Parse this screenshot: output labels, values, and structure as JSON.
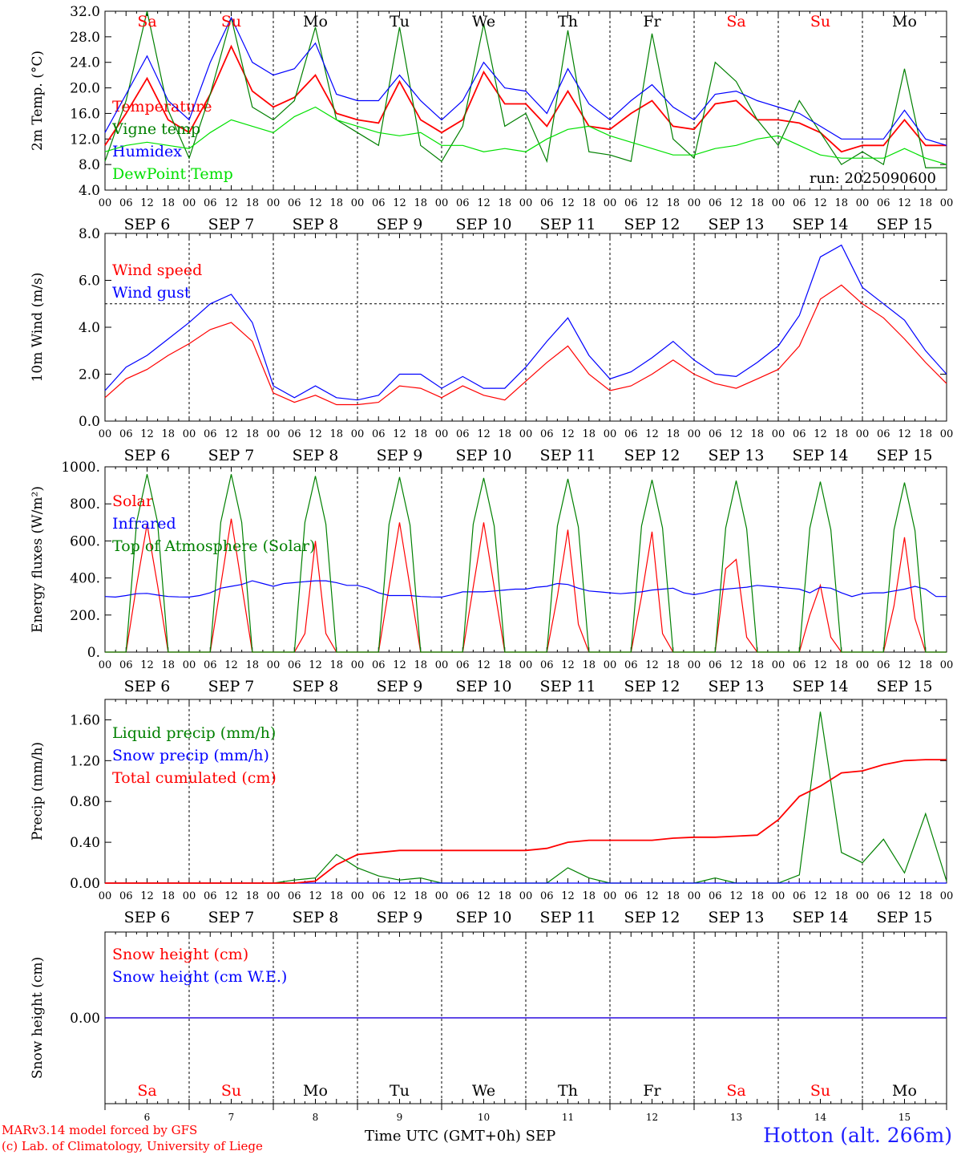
{
  "footer": {
    "model": "MARv3.14 model forced by GFS",
    "lab": "(c) Lab. of Climatology, University of Liege",
    "axis_title": "Time UTC (GMT+0h)",
    "month": "SEP",
    "station": "Hotton (alt. 266m)"
  },
  "run_label": "run: 2025090600",
  "days": [
    {
      "dow": "Sa",
      "num": "6",
      "weekend": true
    },
    {
      "dow": "Su",
      "num": "7",
      "weekend": true
    },
    {
      "dow": "Mo",
      "num": "8",
      "weekend": false
    },
    {
      "dow": "Tu",
      "num": "9",
      "weekend": false
    },
    {
      "dow": "We",
      "num": "10",
      "weekend": false
    },
    {
      "dow": "Th",
      "num": "11",
      "weekend": false
    },
    {
      "dow": "Fr",
      "num": "12",
      "weekend": false
    },
    {
      "dow": "Sa",
      "num": "13",
      "weekend": true
    },
    {
      "dow": "Su",
      "num": "14",
      "weekend": true
    },
    {
      "dow": "Mo",
      "num": "15",
      "weekend": false
    }
  ],
  "colors": {
    "red": "#ff0000",
    "green": "#008000",
    "blue": "#0000ff",
    "lightgreen": "#00e000",
    "weekend": "#ff0000",
    "weekday": "#000000"
  },
  "chart_data": [
    {
      "type": "line",
      "ylabel": "2m Temp. (°C)",
      "ylim": [
        4,
        32
      ],
      "yticks": [
        "4.0",
        "8.0",
        "12.0",
        "16.0",
        "20.0",
        "24.0",
        "28.0",
        "32.0"
      ],
      "x_unit": "hours since 2025-09-06 00 UTC",
      "x": [
        0,
        6,
        12,
        18,
        24,
        30,
        36,
        42,
        48,
        54,
        60,
        66,
        72,
        78,
        84,
        90,
        96,
        102,
        108,
        114,
        120,
        126,
        132,
        138,
        144,
        150,
        156,
        162,
        168,
        174,
        180,
        186,
        192,
        198,
        204,
        210,
        216,
        222,
        228,
        234,
        240
      ],
      "series": [
        {
          "name": "Temperature",
          "color": "#ff0000",
          "values": [
            11.0,
            16.0,
            21.5,
            15.0,
            13.0,
            19.0,
            26.5,
            19.5,
            17.0,
            18.5,
            22.0,
            16.0,
            15.0,
            14.5,
            21.0,
            15.0,
            13.0,
            15.0,
            22.5,
            17.5,
            17.5,
            14.0,
            19.5,
            14.0,
            13.5,
            16.0,
            18.0,
            14.0,
            13.5,
            17.5,
            18.0,
            15.0,
            15.0,
            14.5,
            13.0,
            10.0,
            11.0,
            11.0,
            15.0,
            11.0,
            11.0
          ]
        },
        {
          "name": "Vigne temp",
          "color": "#008000",
          "values": [
            8.5,
            18.0,
            32.0,
            16.5,
            9.0,
            19.0,
            31.0,
            17.0,
            15.0,
            18.0,
            29.5,
            15.0,
            13.0,
            11.0,
            29.5,
            11.0,
            8.5,
            14.0,
            30.0,
            14.0,
            16.0,
            8.5,
            29.0,
            10.0,
            9.5,
            8.5,
            28.5,
            12.0,
            9.0,
            24.0,
            21.0,
            15.0,
            11.0,
            18.0,
            13.0,
            8.0,
            10.0,
            8.0,
            23.0,
            7.5,
            7.5
          ]
        },
        {
          "name": "Humidex",
          "color": "#0000ff",
          "values": [
            13.0,
            19.0,
            25.0,
            18.0,
            15.0,
            24.0,
            31.0,
            24.0,
            22.0,
            23.0,
            27.0,
            19.0,
            18.0,
            18.0,
            22.0,
            18.0,
            15.0,
            18.0,
            24.0,
            20.0,
            19.5,
            16.0,
            23.0,
            17.5,
            15.0,
            18.0,
            20.5,
            17.0,
            15.0,
            19.0,
            19.5,
            18.0,
            17.0,
            16.0,
            14.0,
            12.0,
            12.0,
            12.0,
            16.5,
            12.0,
            11.0
          ]
        },
        {
          "name": "DewPoint Temp",
          "color": "#00e000",
          "values": [
            10.0,
            11.0,
            11.5,
            11.0,
            10.5,
            13.0,
            15.0,
            14.0,
            13.0,
            15.5,
            17.0,
            15.0,
            14.0,
            13.0,
            12.5,
            13.0,
            11.0,
            11.0,
            10.0,
            10.5,
            10.0,
            12.0,
            13.5,
            14.0,
            12.5,
            11.5,
            10.5,
            9.5,
            9.5,
            10.5,
            11.0,
            12.0,
            12.5,
            11.0,
            9.5,
            9.0,
            9.0,
            9.0,
            10.5,
            9.0,
            8.0
          ]
        }
      ]
    },
    {
      "type": "line",
      "ylabel": "10m Wind (m/s)",
      "ylim": [
        0,
        8
      ],
      "yticks": [
        "0.0",
        "2.0",
        "4.0",
        "6.0",
        "8.0"
      ],
      "reference_line": 5,
      "x_unit": "hours since 2025-09-06 00 UTC",
      "x": [
        0,
        6,
        12,
        18,
        24,
        30,
        36,
        42,
        48,
        54,
        60,
        66,
        72,
        78,
        84,
        90,
        96,
        102,
        108,
        114,
        120,
        126,
        132,
        138,
        144,
        150,
        156,
        162,
        168,
        174,
        180,
        186,
        192,
        198,
        204,
        210,
        216,
        222,
        228,
        234,
        240
      ],
      "series": [
        {
          "name": "Wind speed",
          "color": "#ff0000",
          "values": [
            1.0,
            1.8,
            2.2,
            2.8,
            3.3,
            3.9,
            4.2,
            3.4,
            1.2,
            0.8,
            1.1,
            0.7,
            0.7,
            0.8,
            1.5,
            1.4,
            1.0,
            1.5,
            1.1,
            0.9,
            1.7,
            2.5,
            3.2,
            2.0,
            1.3,
            1.5,
            2.0,
            2.6,
            2.0,
            1.6,
            1.4,
            1.8,
            2.2,
            3.2,
            5.2,
            5.8,
            5.0,
            4.4,
            3.5,
            2.5,
            1.6
          ]
        },
        {
          "name": "Wind gust",
          "color": "#0000ff",
          "values": [
            1.3,
            2.3,
            2.8,
            3.5,
            4.2,
            5.0,
            5.4,
            4.2,
            1.5,
            1.0,
            1.5,
            1.0,
            0.9,
            1.1,
            2.0,
            2.0,
            1.4,
            1.9,
            1.4,
            1.4,
            2.3,
            3.4,
            4.4,
            2.8,
            1.8,
            2.1,
            2.7,
            3.4,
            2.6,
            2.0,
            1.9,
            2.5,
            3.2,
            4.5,
            7.0,
            7.5,
            5.7,
            5.0,
            4.3,
            3.0,
            2.0
          ]
        }
      ]
    },
    {
      "type": "line",
      "ylabel": "Energy fluxes (W/m²)",
      "ylim": [
        0,
        1000
      ],
      "yticks": [
        "0.",
        "200.",
        "400.",
        "600.",
        "800.",
        "1000."
      ],
      "x_unit": "hours since 2025-09-06 00 UTC",
      "x": [
        0,
        3,
        6,
        9,
        12,
        15,
        18,
        21,
        24,
        27,
        30,
        33,
        36,
        39,
        42,
        45,
        48,
        51,
        54,
        57,
        60,
        63,
        66,
        69,
        72,
        75,
        78,
        81,
        84,
        87,
        90,
        93,
        96,
        99,
        102,
        105,
        108,
        111,
        114,
        117,
        120,
        123,
        126,
        129,
        132,
        135,
        138,
        141,
        144,
        147,
        150,
        153,
        156,
        159,
        162,
        165,
        168,
        171,
        174,
        177,
        180,
        183,
        186,
        189,
        192,
        195,
        198,
        201,
        204,
        207,
        210,
        213,
        216,
        219,
        222,
        225,
        228,
        231,
        234,
        237,
        240
      ],
      "series": [
        {
          "name": "Solar",
          "color": "#ff0000",
          "values": [
            0,
            0,
            0,
            360,
            690,
            360,
            0,
            0,
            0,
            0,
            0,
            360,
            720,
            360,
            0,
            0,
            0,
            0,
            0,
            100,
            600,
            100,
            0,
            0,
            0,
            0,
            0,
            350,
            700,
            350,
            0,
            0,
            0,
            0,
            0,
            350,
            700,
            350,
            0,
            0,
            0,
            0,
            0,
            300,
            660,
            150,
            0,
            0,
            0,
            0,
            0,
            300,
            650,
            100,
            0,
            0,
            0,
            0,
            0,
            450,
            500,
            80,
            0,
            0,
            0,
            0,
            0,
            200,
            360,
            80,
            0,
            0,
            0,
            0,
            0,
            250,
            620,
            180,
            0,
            0,
            0
          ]
        },
        {
          "name": "Infrared",
          "color": "#0000ff",
          "values": [
            300,
            297,
            305,
            315,
            317,
            308,
            300,
            298,
            297,
            305,
            320,
            345,
            355,
            365,
            385,
            370,
            355,
            370,
            375,
            380,
            385,
            385,
            375,
            360,
            360,
            345,
            320,
            305,
            305,
            305,
            300,
            298,
            297,
            310,
            325,
            325,
            325,
            330,
            335,
            340,
            340,
            350,
            355,
            370,
            365,
            345,
            330,
            325,
            320,
            315,
            320,
            325,
            335,
            340,
            345,
            320,
            310,
            320,
            335,
            340,
            345,
            350,
            360,
            355,
            350,
            345,
            340,
            320,
            350,
            345,
            320,
            300,
            315,
            320,
            320,
            330,
            340,
            355,
            340,
            300,
            300
          ]
        },
        {
          "name": "Top of Atmosphere (Solar)",
          "color": "#008000",
          "values": [
            0,
            0,
            0,
            700,
            960,
            700,
            0,
            0,
            0,
            0,
            0,
            700,
            960,
            700,
            0,
            0,
            0,
            0,
            0,
            700,
            950,
            690,
            0,
            0,
            0,
            0,
            0,
            690,
            945,
            685,
            0,
            0,
            0,
            0,
            0,
            690,
            940,
            680,
            0,
            0,
            0,
            0,
            0,
            680,
            935,
            675,
            0,
            0,
            0,
            0,
            0,
            680,
            930,
            670,
            0,
            0,
            0,
            0,
            0,
            670,
            925,
            665,
            0,
            0,
            0,
            0,
            0,
            670,
            920,
            660,
            0,
            0,
            0,
            0,
            0,
            660,
            915,
            655,
            0,
            0,
            0
          ]
        }
      ]
    },
    {
      "type": "line",
      "ylabel": "Precip (mm/h)",
      "ylim": [
        0,
        1.8
      ],
      "yticks": [
        "0.00",
        "0.40",
        "0.80",
        "1.20",
        "1.60"
      ],
      "x_unit": "hours since 2025-09-06 00 UTC",
      "x": [
        0,
        6,
        12,
        18,
        24,
        30,
        36,
        42,
        48,
        54,
        60,
        66,
        72,
        78,
        84,
        90,
        96,
        102,
        108,
        114,
        120,
        126,
        132,
        138,
        144,
        150,
        156,
        162,
        168,
        174,
        180,
        186,
        192,
        198,
        204,
        210,
        216,
        222,
        228,
        234,
        240
      ],
      "series": [
        {
          "name": "Liquid precip (mm/h)",
          "color": "#008000",
          "values": [
            0,
            0,
            0,
            0,
            0,
            0,
            0,
            0,
            0,
            0.03,
            0.05,
            0.28,
            0.15,
            0.07,
            0.03,
            0.05,
            0,
            0,
            0,
            0,
            0,
            0,
            0.15,
            0.05,
            0,
            0,
            0,
            0,
            0,
            0.05,
            0,
            0,
            0,
            0.08,
            1.68,
            0.3,
            0.2,
            0.43,
            0.1,
            0.68,
            0.02
          ]
        },
        {
          "name": "Snow precip (mm/h)",
          "color": "#0000ff",
          "values": [
            0,
            0,
            0,
            0,
            0,
            0,
            0,
            0,
            0,
            0,
            0,
            0,
            0,
            0,
            0,
            0,
            0,
            0,
            0,
            0,
            0,
            0,
            0,
            0,
            0,
            0,
            0,
            0,
            0,
            0,
            0,
            0,
            0,
            0,
            0,
            0,
            0,
            0,
            0,
            0,
            0
          ]
        },
        {
          "name": "Total cumulated (cm)",
          "color": "#ff0000",
          "values": [
            0,
            0,
            0,
            0,
            0,
            0,
            0,
            0,
            0,
            0,
            0.02,
            0.18,
            0.28,
            0.3,
            0.32,
            0.32,
            0.32,
            0.32,
            0.32,
            0.32,
            0.32,
            0.34,
            0.4,
            0.42,
            0.42,
            0.42,
            0.42,
            0.44,
            0.45,
            0.45,
            0.46,
            0.47,
            0.62,
            0.85,
            0.95,
            1.08,
            1.1,
            1.16,
            1.2,
            1.21,
            1.21
          ]
        }
      ]
    },
    {
      "type": "line",
      "ylabel": "Snow height (cm)",
      "ylim": [
        -0.5,
        0.5
      ],
      "yticks": [
        "0.00"
      ],
      "x_unit": "hours since 2025-09-06 00 UTC",
      "x": [
        0,
        240
      ],
      "series": [
        {
          "name": "Snow height (cm)",
          "color": "#ff0000",
          "values": [
            0,
            0
          ]
        },
        {
          "name": "Snow height (cm W.E.)",
          "color": "#0000ff",
          "values": [
            0,
            0
          ]
        }
      ]
    }
  ]
}
